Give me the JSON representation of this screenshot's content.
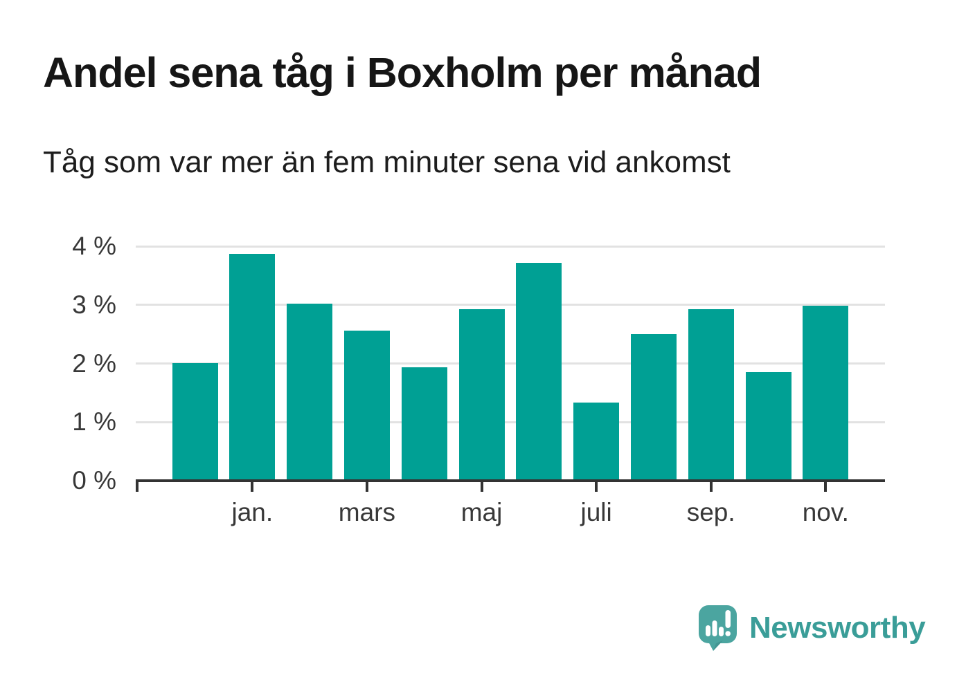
{
  "chart_data": {
    "type": "bar",
    "title": "Andel sena tåg i Boxholm per månad",
    "subtitle": "Tåg som var mer än fem minuter sena vid ankomst",
    "unit": "%",
    "values": [
      2.01,
      3.87,
      3.02,
      2.56,
      1.93,
      2.93,
      3.72,
      1.33,
      2.5,
      2.93,
      1.85,
      2.99
    ],
    "bar_count": 12,
    "x_tick_labels": [
      "jan.",
      "mars",
      "maj",
      "juli",
      "sep.",
      "nov."
    ],
    "x_tick_bar_indices": [
      1,
      3,
      5,
      7,
      9,
      11
    ],
    "y_tick_labels": [
      "0 %",
      "1 %",
      "2 %",
      "3 %",
      "4 %"
    ],
    "y_tick_values": [
      0,
      1,
      2,
      3,
      4
    ],
    "ylim": [
      0,
      4
    ],
    "grid": true,
    "legend": "none"
  },
  "colors": {
    "bar": "#00a094",
    "axis": "#333333",
    "grid": "#e2e2e2",
    "axis_label": "#383838",
    "logo_bubble": "#4ba5a0",
    "logo_bubble_fold": "#3d8b89",
    "logo_mark": "#ffffff",
    "logo_text": "#3a9d98"
  },
  "footer": {
    "brand": "Newsworthy"
  }
}
